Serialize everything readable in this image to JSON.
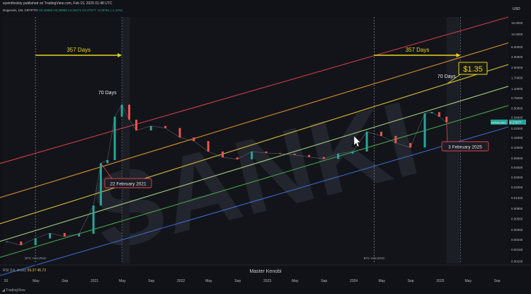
{
  "header": {
    "published": "eyeintheskiy published on TradingView.com, Feb 15, 2025 01:48 UTC",
    "symbol": "Dogecoin, 1W, CRYPTO",
    "ohlc": "O0.26896 H0.28850 L0.26171 C0.27677 -0.00781 (-1.12%)",
    "currency": "USD"
  },
  "footer": {
    "brand": "TradingView",
    "author": "Master Kenobi",
    "rsi_label": "RSI (14, close)",
    "rsi_value": "59.37",
    "rsi_value2": "46.73"
  },
  "watermark": "SANKI",
  "colors": {
    "background": "#101217",
    "candle_up": "#26a69a",
    "candle_down": "#ef5350",
    "channel_red": "#e0414f",
    "channel_orange": "#f29b2b",
    "channel_yellow": "#f3d23c",
    "channel_lightgreen": "#b7e08a",
    "channel_green": "#4caf50",
    "channel_blue": "#3e6fd8",
    "annotation_yellow": "#e8d21d"
  },
  "annotations": {
    "days_left": "357 Days",
    "days_right": "357 Days",
    "peak_left": "70 Days",
    "peak_right": "70 Days",
    "target": "$1.35",
    "date_left": "22 February 2021",
    "date_right": "3 February 2025",
    "halving_left": "BTC HALVING",
    "halving_right": "BTC HALVING",
    "price_tag": "DOGEUSD",
    "price_tag_value": "0.27677"
  },
  "chart_data": {
    "type": "line",
    "title": "",
    "scale": "log",
    "ylim": [
      0.0009,
      20
    ],
    "grid": false,
    "y_ticks": [
      "16.0000",
      "10.0000",
      "6.00000",
      "4.00000",
      "2.60000",
      "1.70000",
      "1.10000",
      "0.75000",
      "0.50000",
      "0.34000",
      "0.22000",
      "0.15000",
      "0.10000",
      "0.06500",
      "0.04500",
      "0.03000",
      "0.02000",
      "0.01300",
      "0.00850",
      "0.00560",
      "0.00360",
      "0.00240",
      "0.00160",
      "0.00100"
    ],
    "x_ticks": [
      "20",
      "May",
      "Sep",
      "2021",
      "May",
      "Sep",
      "2022",
      "May",
      "Sep",
      "2023",
      "May",
      "Sep",
      "2024",
      "May",
      "Sep",
      "2025",
      "May",
      "Sep"
    ],
    "series": [
      {
        "name": "DOGEUSD",
        "x": [
          "2020-01",
          "2020-03",
          "2020-05",
          "2020-07",
          "2020-09",
          "2020-11",
          "2021-01",
          "2021-02",
          "2021-03",
          "2021-04",
          "2021-05",
          "2021-06",
          "2021-07",
          "2021-09",
          "2021-11",
          "2022-01",
          "2022-03",
          "2022-05",
          "2022-07",
          "2022-09",
          "2022-11",
          "2023-01",
          "2023-03",
          "2023-05",
          "2023-07",
          "2023-09",
          "2023-11",
          "2024-01",
          "2024-03",
          "2024-05",
          "2024-07",
          "2024-09",
          "2024-11",
          "2024-12",
          "2025-01",
          "2025-02"
        ],
        "values": [
          0.0022,
          0.0019,
          0.0025,
          0.0031,
          0.0027,
          0.003,
          0.0095,
          0.053,
          0.06,
          0.35,
          0.57,
          0.31,
          0.2,
          0.24,
          0.22,
          0.15,
          0.13,
          0.085,
          0.067,
          0.062,
          0.085,
          0.08,
          0.078,
          0.074,
          0.068,
          0.063,
          0.078,
          0.085,
          0.19,
          0.16,
          0.12,
          0.1,
          0.4,
          0.42,
          0.35,
          0.27677
        ]
      }
    ]
  }
}
